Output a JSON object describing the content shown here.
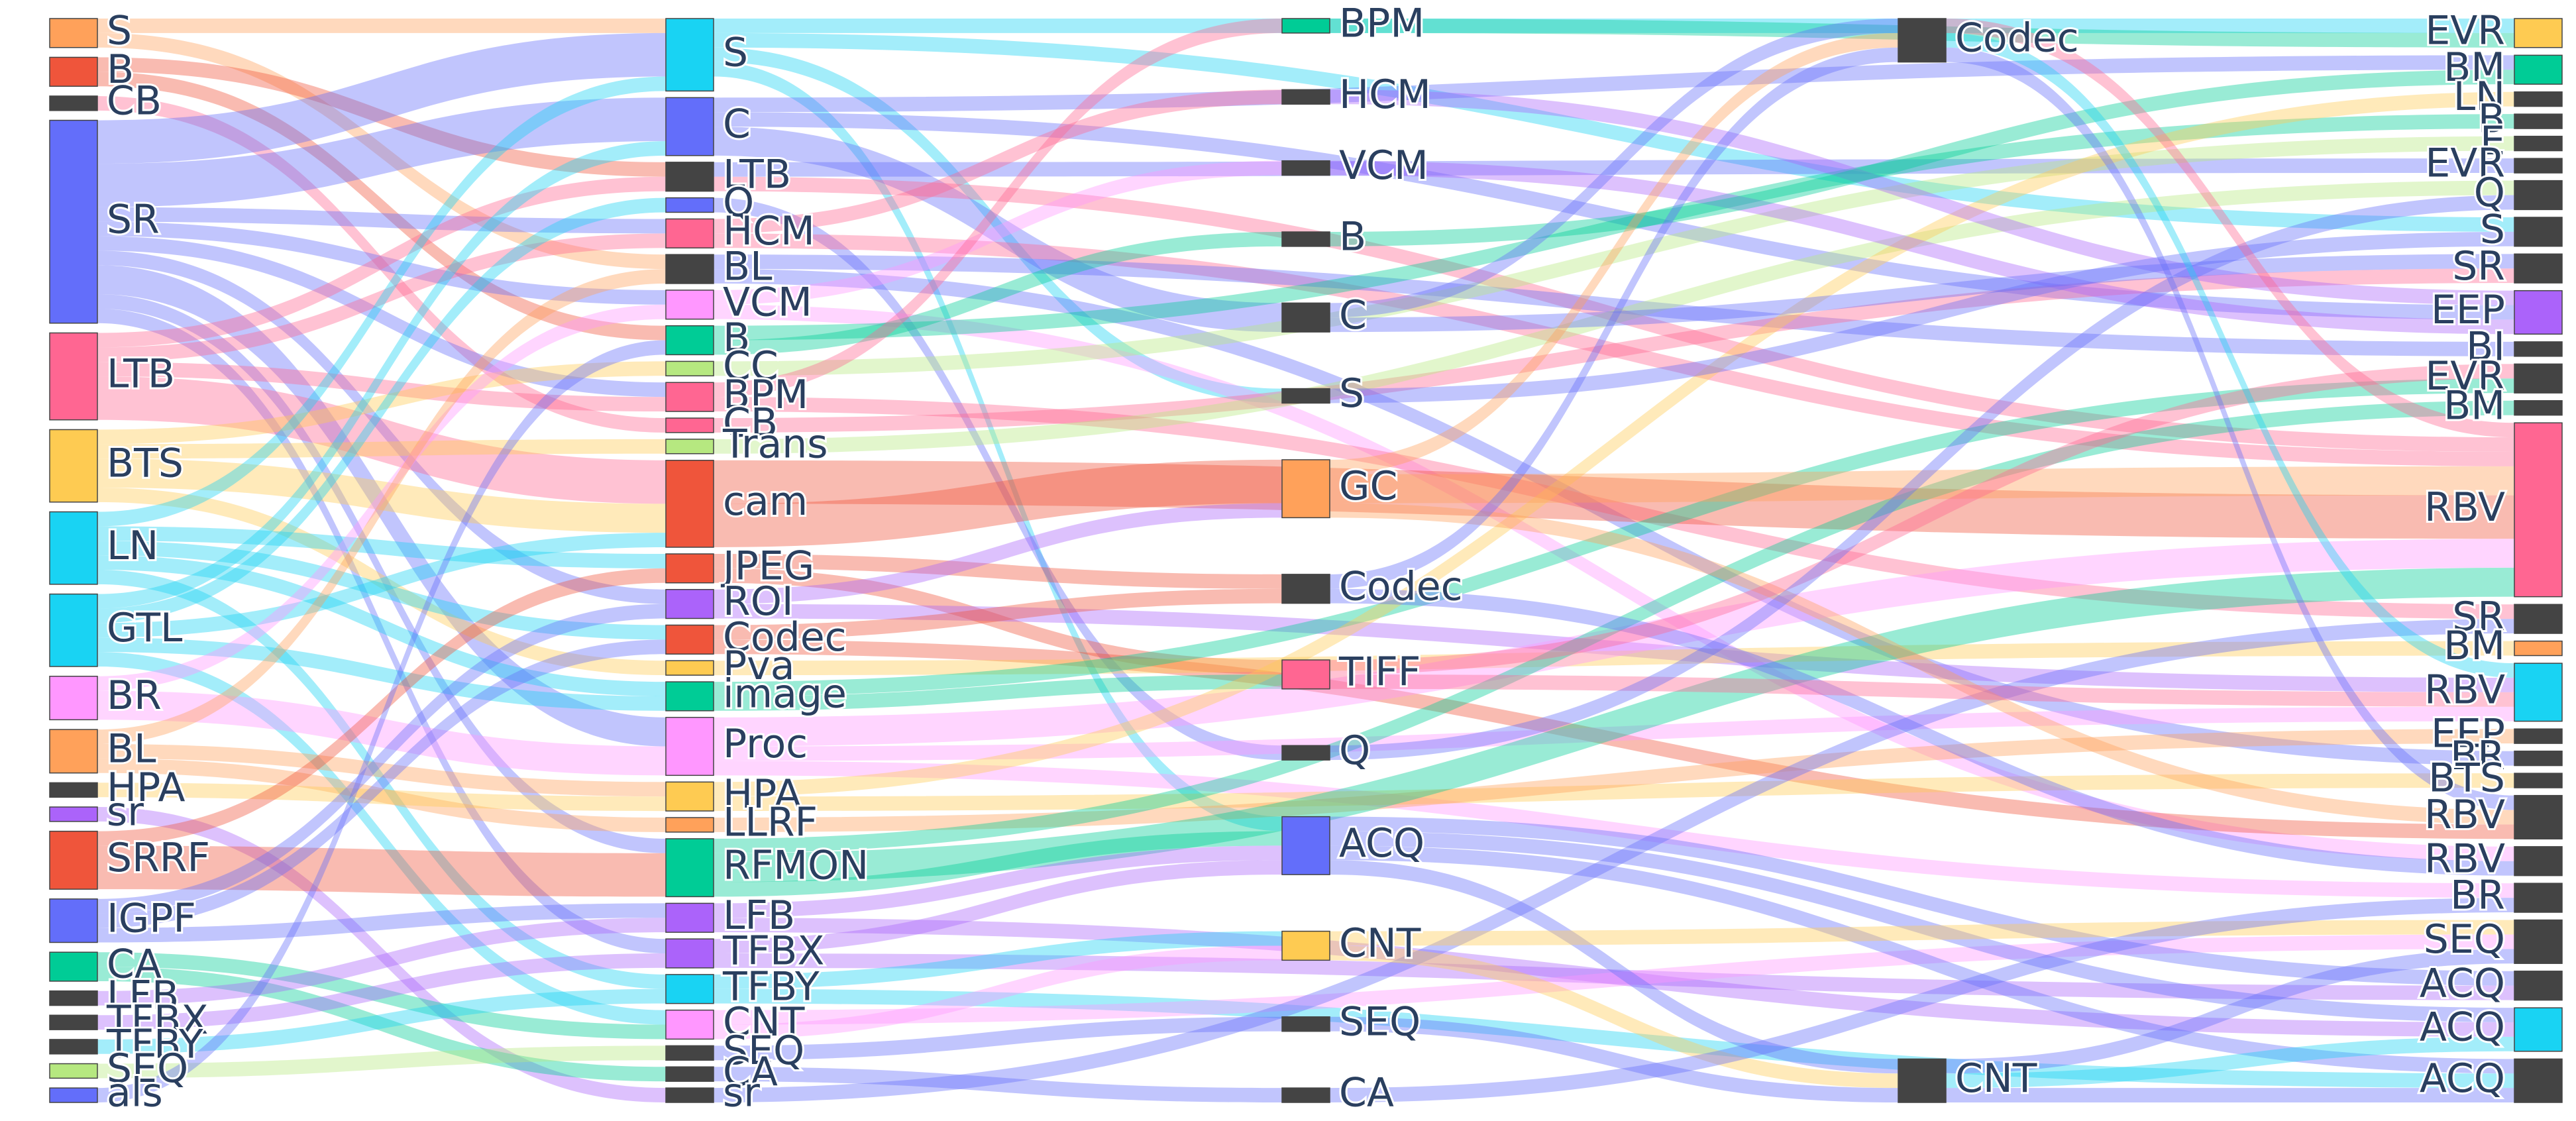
{
  "chart_data": {
    "type": "sankey",
    "nodes": {
      "label": [
        "S",
        "B",
        "CB",
        "SR",
        "LTB",
        "BTS",
        "LN",
        "GTL",
        "BR",
        "BL",
        "HPA",
        "sr",
        "SRRF",
        "IGPF",
        "CA",
        "LFB",
        "TFBX",
        "TFBY",
        "SEQ",
        "als",
        "S",
        "C",
        "LTB",
        "Q",
        "HCM",
        "BL",
        "VCM",
        "B",
        "CC",
        "BPM",
        "CB",
        "Trans",
        "cam",
        "JPEG",
        "ROI",
        "Codec",
        "Pva",
        "image",
        "Proc",
        "HPA",
        "LLRF",
        "RFMON",
        "LFB",
        "TFBX",
        "TFBY",
        "CNT",
        "SEQ",
        "CA",
        "sr",
        "BPM",
        "HCM",
        "VCM",
        "B",
        "C",
        "S",
        "GC",
        "Codec",
        "TIFF",
        "Q",
        "ACQ",
        "CNT",
        "SEQ",
        "CA",
        "Codec",
        "CNT",
        "EVR",
        "BM",
        "LN",
        "B",
        "E",
        "EVR",
        "Q",
        "S",
        "SR",
        "EEP",
        "BI",
        "EVR",
        "BM",
        "RBV",
        "SR",
        "BM",
        "RBV",
        "EEP",
        "BR",
        "BTS",
        "RBV",
        "RBV",
        "BR",
        "SEQ",
        "ACQ",
        "ACQ",
        "ACQ"
      ],
      "color": [
        "#FFA15A",
        "#EF553B",
        "#444444",
        "#636efa",
        "#FF6692",
        "#FECB52",
        "#19d3f3",
        "#19d3f3",
        "#FF97FF",
        "#FFA15A",
        "#444444",
        "#ab63fa",
        "#EF553B",
        "#636efa",
        "#00cc96",
        "#444444",
        "#444444",
        "#444444",
        "#B6E880",
        "#636efa",
        "#19d3f3",
        "#636efa",
        "#444444",
        "#636efa",
        "#FF6692",
        "#444444",
        "#FF97FF",
        "#00cc96",
        "#B6E880",
        "#FF6692",
        "#FF6692",
        "#B6E880",
        "#EF553B",
        "#EF553B",
        "#ab63fa",
        "#EF553B",
        "#FECB52",
        "#00cc96",
        "#FF97FF",
        "#FECB52",
        "#FFA15A",
        "#00cc96",
        "#ab63fa",
        "#ab63fa",
        "#19d3f3",
        "#FF97FF",
        "#444444",
        "#444444",
        "#444444",
        "#00cc96",
        "#444444",
        "#444444",
        "#444444",
        "#444444",
        "#444444",
        "#FFA15A",
        "#444444",
        "#FF6692",
        "#444444",
        "#636efa",
        "#FECB52",
        "#444444",
        "#444444",
        "#444444",
        "#444444",
        "#FECB52",
        "#00cc96",
        "#444444",
        "#444444",
        "#444444",
        "#444444",
        "#444444",
        "#444444",
        "#444444",
        "#ab63fa",
        "#444444",
        "#444444",
        "#444444",
        "#FF6692",
        "#444444",
        "#FFA15A",
        "#19d3f3",
        "#444444",
        "#444444",
        "#444444",
        "#444444",
        "#444444",
        "#444444",
        "#444444",
        "#444444",
        "#19d3f3",
        "#444444"
      ]
    },
    "links": {
      "source": [
        0,
        0,
        1,
        1,
        2,
        3,
        3,
        3,
        3,
        3,
        3,
        3,
        3,
        3,
        4,
        4,
        4,
        4,
        5,
        5,
        5,
        5,
        6,
        6,
        6,
        6,
        6,
        7,
        7,
        7,
        7,
        7,
        8,
        8,
        9,
        9,
        9,
        10,
        11,
        12,
        12,
        13,
        13,
        13,
        14,
        14,
        15,
        16,
        17,
        18,
        19,
        20,
        20,
        20,
        20,
        21,
        21,
        21,
        22,
        22,
        23,
        24,
        24,
        25,
        25,
        26,
        26,
        27,
        27,
        28,
        29,
        29,
        30,
        31,
        32,
        32,
        33,
        33,
        34,
        34,
        35,
        35,
        36,
        37,
        37,
        38,
        38,
        38,
        39,
        39,
        40,
        41,
        41,
        41,
        42,
        42,
        43,
        43,
        44,
        44,
        45,
        45,
        46,
        47,
        48,
        49,
        50,
        51,
        52,
        53,
        53,
        54,
        55,
        55,
        55,
        56,
        56,
        57,
        57,
        58,
        59,
        59,
        59,
        59,
        60,
        60,
        61,
        62,
        63,
        63,
        63,
        64,
        64,
        64
      ],
      "target": [
        20,
        25,
        27,
        22,
        30,
        20,
        21,
        24,
        26,
        29,
        34,
        38,
        41,
        43,
        32,
        22,
        24,
        29,
        32,
        36,
        28,
        31,
        20,
        37,
        33,
        35,
        44,
        21,
        32,
        37,
        23,
        45,
        38,
        26,
        39,
        40,
        25,
        39,
        48,
        41,
        33,
        42,
        34,
        35,
        47,
        45,
        42,
        43,
        44,
        46,
        27,
        54,
        65,
        72,
        59,
        53,
        74,
        66,
        70,
        78,
        58,
        50,
        78,
        75,
        83,
        51,
        86,
        52,
        68,
        69,
        49,
        79,
        73,
        71,
        55,
        78,
        56,
        57,
        55,
        81,
        56,
        85,
        80,
        57,
        76,
        78,
        81,
        87,
        67,
        84,
        82,
        78,
        77,
        59,
        59,
        90,
        59,
        89,
        60,
        91,
        60,
        88,
        61,
        62,
        79,
        65,
        74,
        74,
        66,
        63,
        73,
        72,
        78,
        85,
        63,
        63,
        86,
        81,
        76,
        71,
        64,
        89,
        90,
        91,
        64,
        88,
        64,
        87,
        78,
        81,
        85,
        91,
        90,
        88
      ],
      "value": [
        1,
        1,
        1,
        1,
        1,
        3,
        3,
        1,
        1,
        1,
        1,
        2,
        1,
        1,
        3,
        1,
        1,
        1,
        2,
        1,
        1,
        1,
        1,
        1,
        1,
        1,
        1,
        1,
        1,
        1,
        1,
        1,
        2,
        1,
        1,
        1,
        1,
        1,
        1,
        3,
        1,
        1,
        1,
        1,
        1,
        1,
        1,
        1,
        1,
        1,
        1,
        1,
        1,
        1,
        1,
        2,
        1,
        1,
        1,
        1,
        1,
        1,
        1,
        1,
        1,
        1,
        1,
        1,
        1,
        1,
        1,
        1,
        1,
        1,
        3,
        3,
        1,
        1,
        1,
        1,
        1,
        1,
        1,
        1,
        1,
        2,
        1,
        1,
        1,
        1,
        1,
        2,
        1,
        1,
        1,
        1,
        1,
        1,
        1,
        1,
        1,
        1,
        1,
        1,
        1,
        1,
        1,
        1,
        1,
        1,
        1,
        1,
        2,
        1,
        1,
        1,
        1,
        1,
        1,
        1,
        1,
        1,
        1,
        1,
        1,
        1,
        1,
        1,
        1,
        1,
        1,
        1,
        1,
        1
      ]
    }
  }
}
